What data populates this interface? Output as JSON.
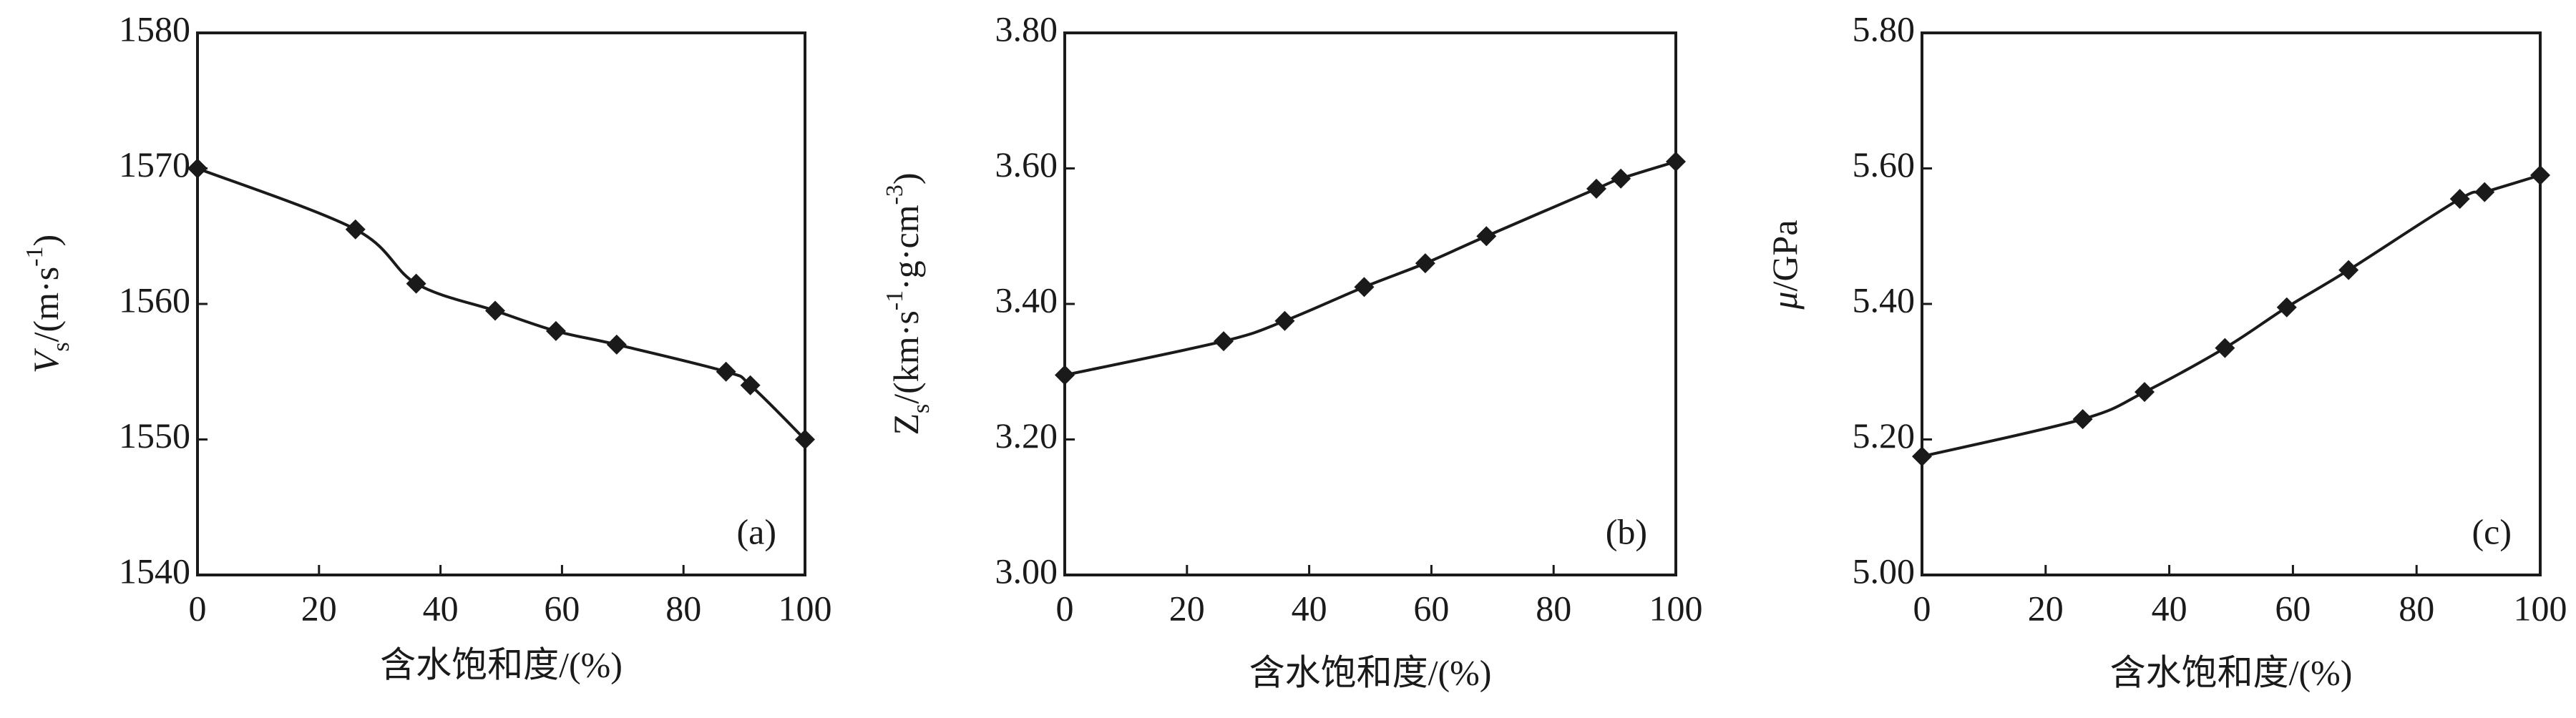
{
  "chart_data": [
    {
      "type": "line",
      "panel_label": "(a)",
      "xlabel": "含水饱和度/(%)",
      "ylabel_parts": [
        "V",
        "s",
        "/(m·s",
        "-1",
        ")"
      ],
      "x": [
        0,
        26,
        36,
        49,
        59,
        69,
        87,
        91,
        100
      ],
      "series": [
        {
          "color": "#1a1a1a",
          "values": [
            1570,
            1565.5,
            1561.5,
            1559.5,
            1558,
            1557,
            1555,
            1554,
            1550
          ]
        }
      ],
      "xlim": [
        0,
        100
      ],
      "xticks": [
        0,
        20,
        40,
        60,
        80,
        100
      ],
      "ylim": [
        1540,
        1580
      ],
      "yticks": [
        1540,
        1550,
        1560,
        1570,
        1580
      ]
    },
    {
      "type": "line",
      "panel_label": "(b)",
      "xlabel": "含水饱和度/(%)",
      "ylabel_parts": [
        "Z",
        "s",
        "/(km·s",
        "-1",
        "·g·cm",
        "-3",
        ")"
      ],
      "x": [
        0,
        26,
        36,
        49,
        59,
        69,
        87,
        91,
        100
      ],
      "series": [
        {
          "color": "#1a1a1a",
          "values": [
            3.295,
            3.345,
            3.375,
            3.425,
            3.46,
            3.5,
            3.57,
            3.585,
            3.61
          ]
        }
      ],
      "xlim": [
        0,
        100
      ],
      "xticks": [
        0,
        20,
        40,
        60,
        80,
        100
      ],
      "ylim": [
        3.0,
        3.8
      ],
      "yticks": [
        {
          "value": 3.0,
          "label": "3.00"
        },
        {
          "value": 3.2,
          "label": "3.20"
        },
        {
          "value": 3.4,
          "label": "3.40"
        },
        {
          "value": 3.6,
          "label": "3.60"
        },
        {
          "value": 3.8,
          "label": "3.80"
        }
      ]
    },
    {
      "type": "line",
      "panel_label": "(c)",
      "xlabel": "含水饱和度/(%)",
      "ylabel_parts": [
        "μ",
        "/GPa"
      ],
      "x": [
        0,
        26,
        36,
        49,
        59,
        69,
        87,
        91,
        100
      ],
      "series": [
        {
          "color": "#1a1a1a",
          "values": [
            5.175,
            5.23,
            5.27,
            5.335,
            5.395,
            5.45,
            5.555,
            5.565,
            5.59
          ]
        }
      ],
      "xlim": [
        0,
        100
      ],
      "xticks": [
        0,
        20,
        40,
        60,
        80,
        100
      ],
      "ylim": [
        5.0,
        5.8
      ],
      "yticks": [
        {
          "value": 5.0,
          "label": "5.00"
        },
        {
          "value": 5.2,
          "label": "5.20"
        },
        {
          "value": 5.4,
          "label": "5.40"
        },
        {
          "value": 5.6,
          "label": "5.60"
        },
        {
          "value": 5.8,
          "label": "5.80"
        }
      ]
    }
  ]
}
